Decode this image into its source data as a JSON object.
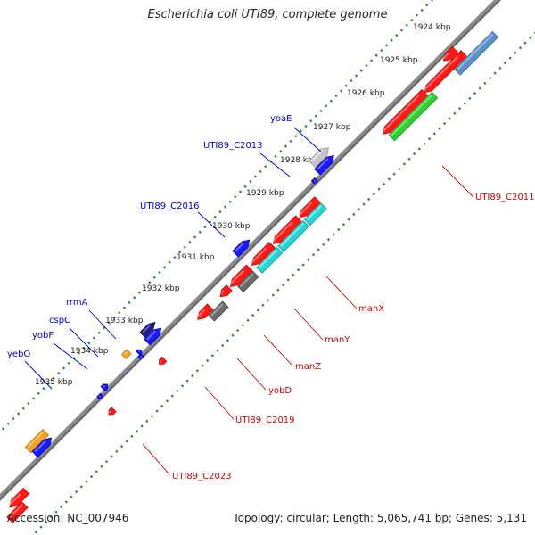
{
  "title": "Escherichia coli UTI89, complete genome",
  "footer": {
    "accession": "Accession: NC_007946",
    "summary": "Topology: circular; Length: 5,065,741 bp; Genes: 5,131"
  },
  "colors": {
    "background": "#ffffff",
    "backbone": "#8a8a8a",
    "tick_dots": "#228b22",
    "forward_label": "#0000cc",
    "reverse_label": "#cc0000"
  },
  "scale_labels": [
    "1924 kbp",
    "1925 kbp",
    "1926 kbp",
    "1927 kbp",
    "1928 kbp",
    "1929 kbp",
    "1930 kbp",
    "1931 kbp",
    "1932 kbp",
    "1933 kbp",
    "1934 kbp",
    "1935 kbp"
  ],
  "gene_labels": {
    "forward": [
      "yoaE",
      "UTI89_C2013",
      "UTI89_C2016",
      "rrmA",
      "cspC",
      "yobF",
      "yebO"
    ],
    "reverse": [
      "UTI89_C2011",
      "manX",
      "manY",
      "manZ",
      "yobD",
      "UTI89_C2019",
      "UTI89_C2023"
    ]
  },
  "gene_track_colors": [
    "red",
    "steelblue",
    "green",
    "silver",
    "blue",
    "navy",
    "orange",
    "cyan",
    "dimgray"
  ]
}
